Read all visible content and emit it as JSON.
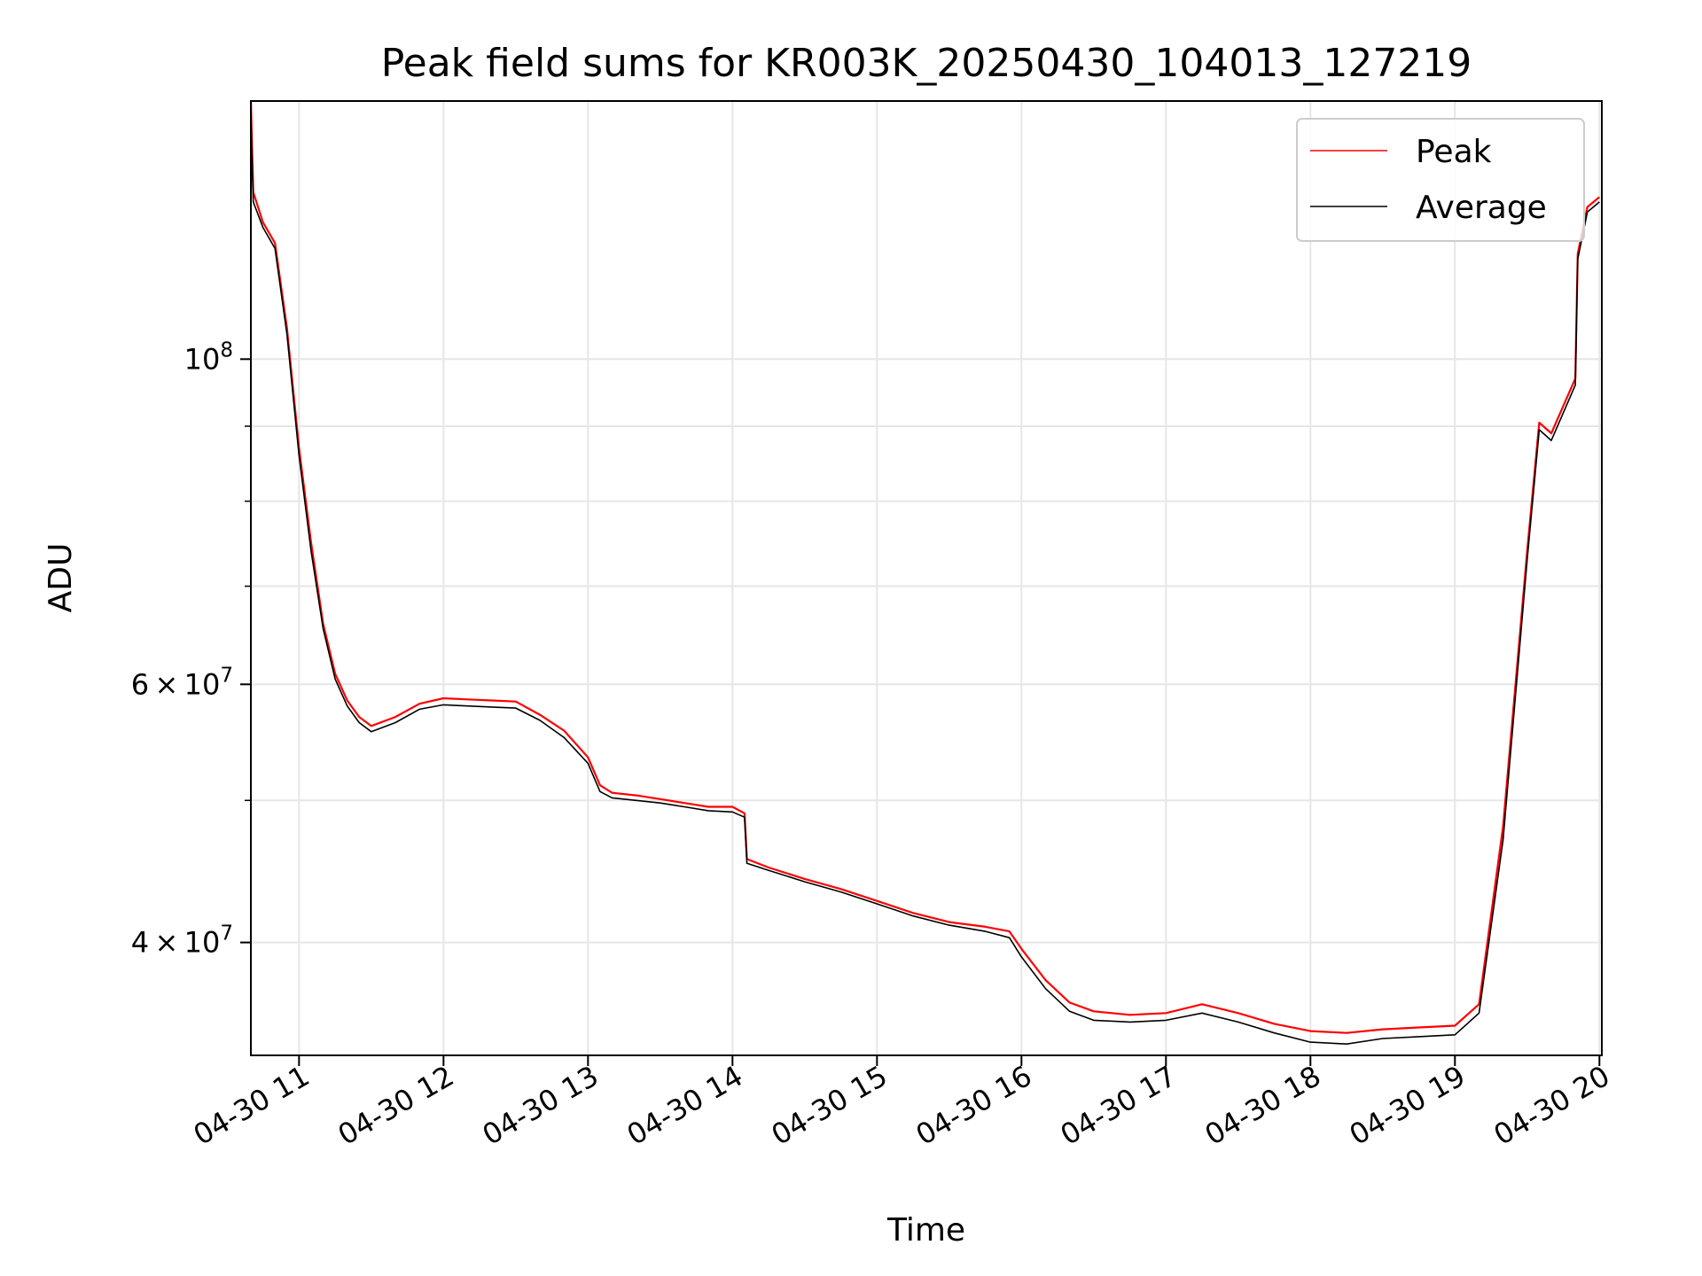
{
  "chart_data": {
    "type": "line",
    "title": "Peak field sums for KR003K_20250430_104013_127219",
    "xlabel": "Time",
    "ylabel": "ADU",
    "x_axis": {
      "type": "datetime",
      "range": [
        "2025-04-30T10:40",
        "2025-04-30T20:01"
      ],
      "ticks": [
        {
          "value": "2025-04-30T11:00",
          "label": "04-30 11"
        },
        {
          "value": "2025-04-30T12:00",
          "label": "04-30 12"
        },
        {
          "value": "2025-04-30T13:00",
          "label": "04-30 13"
        },
        {
          "value": "2025-04-30T14:00",
          "label": "04-30 14"
        },
        {
          "value": "2025-04-30T15:00",
          "label": "04-30 15"
        },
        {
          "value": "2025-04-30T16:00",
          "label": "04-30 16"
        },
        {
          "value": "2025-04-30T17:00",
          "label": "04-30 17"
        },
        {
          "value": "2025-04-30T18:00",
          "label": "04-30 18"
        },
        {
          "value": "2025-04-30T19:00",
          "label": "04-30 19"
        },
        {
          "value": "2025-04-30T20:00",
          "label": "04-30 20"
        }
      ]
    },
    "y_axis": {
      "scale": "log",
      "range": [
        33500000,
        150000000
      ],
      "major_ticks": [
        {
          "value": 100000000,
          "label": "10^8"
        },
        {
          "value": 60000000,
          "label": "6x10^7"
        },
        {
          "value": 40000000,
          "label": "4x10^7"
        }
      ],
      "minor_ticks": [
        90000000,
        80000000,
        70000000,
        50000000
      ]
    },
    "grid": true,
    "legend": {
      "placement": "top-right",
      "entries": [
        "Peak",
        "Average"
      ]
    },
    "series": [
      {
        "name": "Peak",
        "color": "#ff0000",
        "points": [
          [
            "2025-04-30T10:40",
            150000000
          ],
          [
            "2025-04-30T10:41",
            130000000
          ],
          [
            "2025-04-30T10:45",
            124000000
          ],
          [
            "2025-04-30T10:50",
            120000000
          ],
          [
            "2025-04-30T10:55",
            105000000
          ],
          [
            "2025-04-30T11:00",
            87000000
          ],
          [
            "2025-04-30T11:05",
            75000000
          ],
          [
            "2025-04-30T11:10",
            66000000
          ],
          [
            "2025-04-30T11:15",
            61000000
          ],
          [
            "2025-04-30T11:20",
            58500000
          ],
          [
            "2025-04-30T11:25",
            57000000
          ],
          [
            "2025-04-30T11:30",
            56200000
          ],
          [
            "2025-04-30T11:40",
            57000000
          ],
          [
            "2025-04-30T11:50",
            58200000
          ],
          [
            "2025-04-30T12:00",
            58700000
          ],
          [
            "2025-04-30T12:10",
            58600000
          ],
          [
            "2025-04-30T12:20",
            58500000
          ],
          [
            "2025-04-30T12:30",
            58400000
          ],
          [
            "2025-04-30T12:40",
            57200000
          ],
          [
            "2025-04-30T12:50",
            55800000
          ],
          [
            "2025-04-30T13:00",
            53500000
          ],
          [
            "2025-04-30T13:05",
            51200000
          ],
          [
            "2025-04-30T13:10",
            50600000
          ],
          [
            "2025-04-30T13:20",
            50400000
          ],
          [
            "2025-04-30T13:30",
            50100000
          ],
          [
            "2025-04-30T13:40",
            49800000
          ],
          [
            "2025-04-30T13:50",
            49500000
          ],
          [
            "2025-04-30T14:00",
            49500000
          ],
          [
            "2025-04-30T14:05",
            49000000
          ],
          [
            "2025-04-30T14:06",
            45600000
          ],
          [
            "2025-04-30T14:15",
            45000000
          ],
          [
            "2025-04-30T14:30",
            44200000
          ],
          [
            "2025-04-30T14:45",
            43500000
          ],
          [
            "2025-04-30T15:00",
            42700000
          ],
          [
            "2025-04-30T15:15",
            41900000
          ],
          [
            "2025-04-30T15:30",
            41300000
          ],
          [
            "2025-04-30T15:45",
            41000000
          ],
          [
            "2025-04-30T15:55",
            40700000
          ],
          [
            "2025-04-30T16:00",
            39600000
          ],
          [
            "2025-04-30T16:10",
            37700000
          ],
          [
            "2025-04-30T16:20",
            36400000
          ],
          [
            "2025-04-30T16:30",
            35900000
          ],
          [
            "2025-04-30T16:45",
            35700000
          ],
          [
            "2025-04-30T17:00",
            35800000
          ],
          [
            "2025-04-30T17:15",
            36300000
          ],
          [
            "2025-04-30T17:30",
            35800000
          ],
          [
            "2025-04-30T17:45",
            35200000
          ],
          [
            "2025-04-30T18:00",
            34800000
          ],
          [
            "2025-04-30T18:15",
            34700000
          ],
          [
            "2025-04-30T18:30",
            34900000
          ],
          [
            "2025-04-30T18:45",
            35000000
          ],
          [
            "2025-04-30T19:00",
            35100000
          ],
          [
            "2025-04-30T19:10",
            36300000
          ],
          [
            "2025-04-30T19:20",
            48000000
          ],
          [
            "2025-04-30T19:30",
            74000000
          ],
          [
            "2025-04-30T19:35",
            90500000
          ],
          [
            "2025-04-30T19:40",
            89000000
          ],
          [
            "2025-04-30T19:50",
            97000000
          ],
          [
            "2025-04-30T19:51",
            118000000
          ],
          [
            "2025-04-30T19:55",
            127000000
          ],
          [
            "2025-04-30T20:00",
            129000000
          ]
        ]
      },
      {
        "name": "Average",
        "color": "#000000",
        "points": [
          [
            "2025-04-30T10:40",
            146000000
          ],
          [
            "2025-04-30T10:41",
            128000000
          ],
          [
            "2025-04-30T10:45",
            123000000
          ],
          [
            "2025-04-30T10:50",
            119000000
          ],
          [
            "2025-04-30T10:55",
            104000000
          ],
          [
            "2025-04-30T11:00",
            86000000
          ],
          [
            "2025-04-30T11:05",
            74000000
          ],
          [
            "2025-04-30T11:10",
            65500000
          ],
          [
            "2025-04-30T11:15",
            60500000
          ],
          [
            "2025-04-30T11:20",
            58000000
          ],
          [
            "2025-04-30T11:25",
            56500000
          ],
          [
            "2025-04-30T11:30",
            55700000
          ],
          [
            "2025-04-30T11:40",
            56500000
          ],
          [
            "2025-04-30T11:50",
            57700000
          ],
          [
            "2025-04-30T12:00",
            58100000
          ],
          [
            "2025-04-30T12:10",
            58000000
          ],
          [
            "2025-04-30T12:20",
            57900000
          ],
          [
            "2025-04-30T12:30",
            57800000
          ],
          [
            "2025-04-30T12:40",
            56700000
          ],
          [
            "2025-04-30T12:50",
            55200000
          ],
          [
            "2025-04-30T13:00",
            53000000
          ],
          [
            "2025-04-30T13:05",
            50700000
          ],
          [
            "2025-04-30T13:10",
            50200000
          ],
          [
            "2025-04-30T13:20",
            50000000
          ],
          [
            "2025-04-30T13:30",
            49800000
          ],
          [
            "2025-04-30T13:40",
            49500000
          ],
          [
            "2025-04-30T13:50",
            49200000
          ],
          [
            "2025-04-30T14:00",
            49100000
          ],
          [
            "2025-04-30T14:05",
            48700000
          ],
          [
            "2025-04-30T14:06",
            45300000
          ],
          [
            "2025-04-30T14:15",
            44800000
          ],
          [
            "2025-04-30T14:30",
            44000000
          ],
          [
            "2025-04-30T14:45",
            43300000
          ],
          [
            "2025-04-30T15:00",
            42500000
          ],
          [
            "2025-04-30T15:15",
            41700000
          ],
          [
            "2025-04-30T15:30",
            41100000
          ],
          [
            "2025-04-30T15:45",
            40700000
          ],
          [
            "2025-04-30T15:55",
            40300000
          ],
          [
            "2025-04-30T16:00",
            39100000
          ],
          [
            "2025-04-30T16:10",
            37200000
          ],
          [
            "2025-04-30T16:20",
            35900000
          ],
          [
            "2025-04-30T16:30",
            35400000
          ],
          [
            "2025-04-30T16:45",
            35300000
          ],
          [
            "2025-04-30T17:00",
            35400000
          ],
          [
            "2025-04-30T17:15",
            35800000
          ],
          [
            "2025-04-30T17:30",
            35300000
          ],
          [
            "2025-04-30T17:45",
            34700000
          ],
          [
            "2025-04-30T18:00",
            34200000
          ],
          [
            "2025-04-30T18:15",
            34100000
          ],
          [
            "2025-04-30T18:30",
            34400000
          ],
          [
            "2025-04-30T18:45",
            34500000
          ],
          [
            "2025-04-30T19:00",
            34600000
          ],
          [
            "2025-04-30T19:10",
            35800000
          ],
          [
            "2025-04-30T19:20",
            47000000
          ],
          [
            "2025-04-30T19:30",
            73000000
          ],
          [
            "2025-04-30T19:35",
            89500000
          ],
          [
            "2025-04-30T19:40",
            88000000
          ],
          [
            "2025-04-30T19:50",
            96000000
          ],
          [
            "2025-04-30T19:51",
            117000000
          ],
          [
            "2025-04-30T19:55",
            126000000
          ],
          [
            "2025-04-30T20:00",
            128000000
          ]
        ]
      }
    ]
  }
}
